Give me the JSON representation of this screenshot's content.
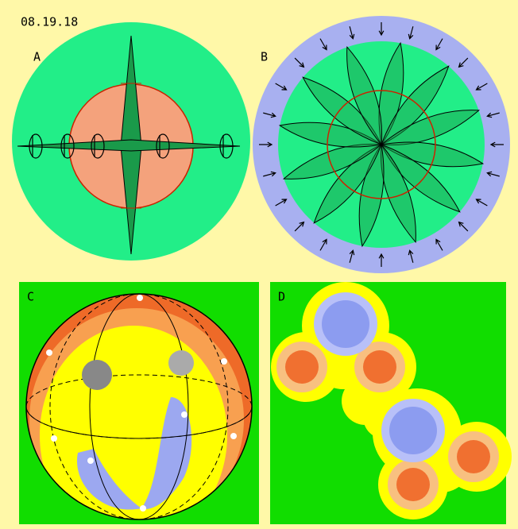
{
  "header": {
    "date": "08.19.18"
  },
  "panels": [
    {
      "label": "A"
    },
    {
      "label": "B"
    },
    {
      "label": "C"
    },
    {
      "label": "D"
    }
  ]
}
